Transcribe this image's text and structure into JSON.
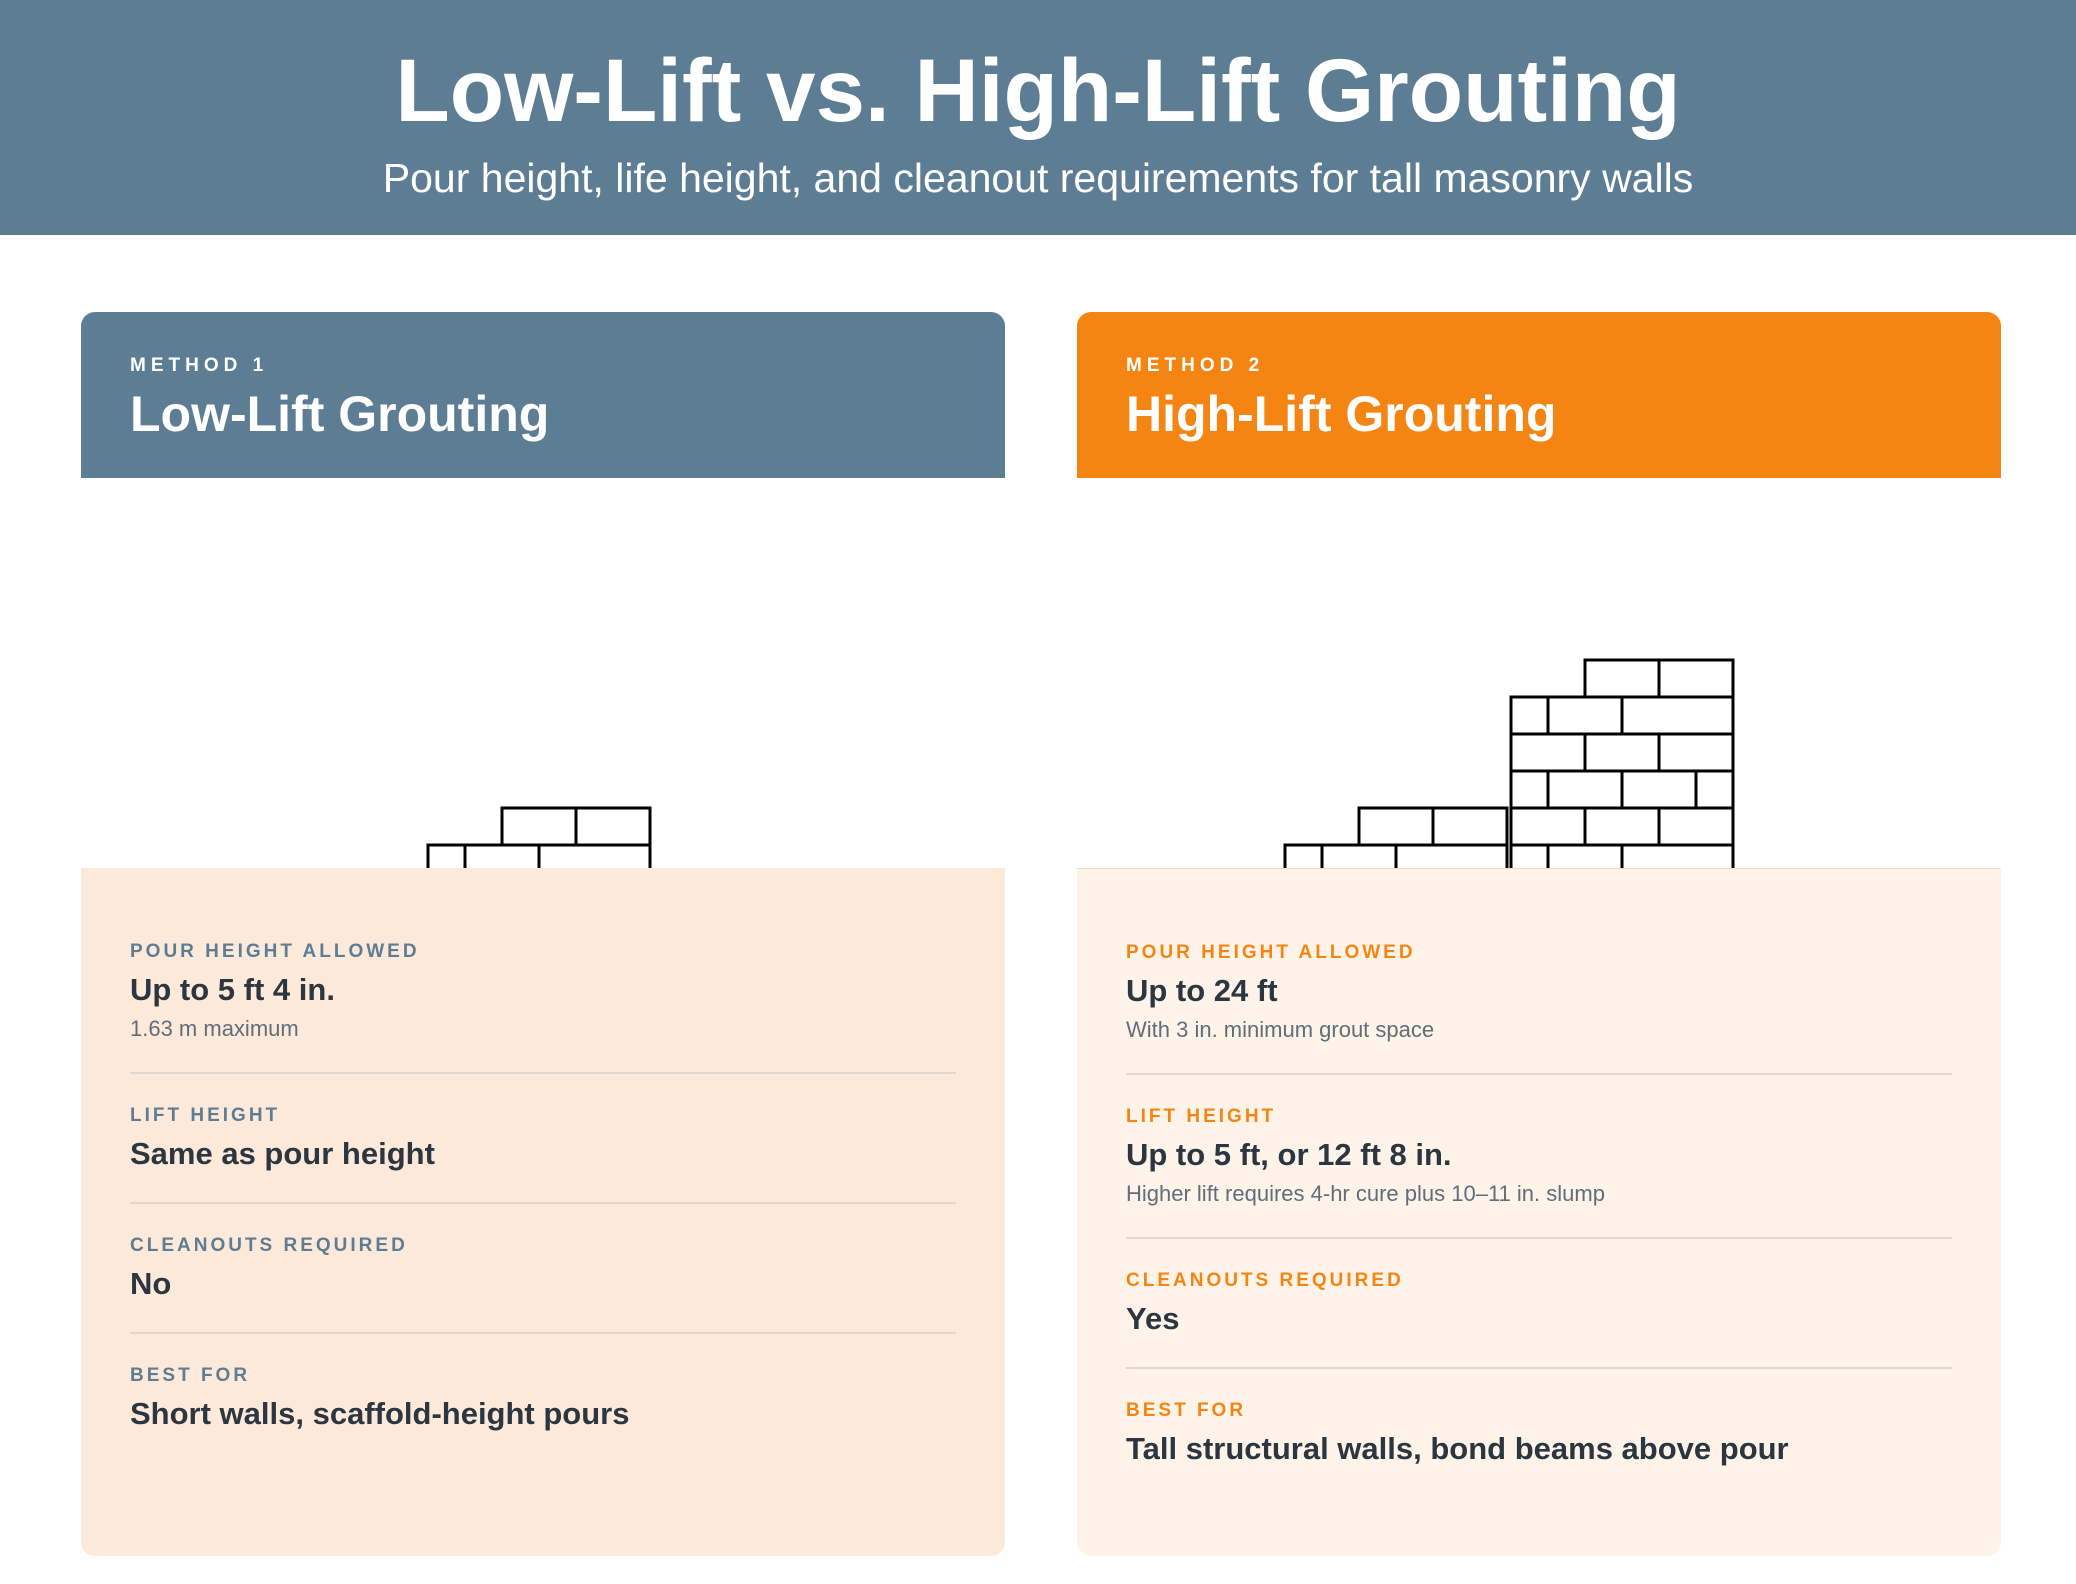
{
  "header": {
    "title": "Low-Lift vs. High-Lift Grouting",
    "subtitle": "Pour height, life height, and cleanout requirements for tall masonry walls"
  },
  "methods": [
    {
      "kicker": "METHOD 1",
      "name": "Low-Lift Grouting",
      "accent": "#5d7d94",
      "facts": [
        {
          "label": "POUR HEIGHT ALLOWED",
          "value": "Up to 5 ft 4 in.",
          "note": "1.63 m maximum"
        },
        {
          "label": "LIFT HEIGHT",
          "value": "Same as pour height",
          "note": ""
        },
        {
          "label": "CLEANOUTS REQUIRED",
          "value": "No",
          "note": ""
        },
        {
          "label": "BEST FOR",
          "value": "Short walls, scaffold-height pours",
          "note": ""
        }
      ]
    },
    {
      "kicker": "METHOD 2",
      "name": "High-Lift Grouting",
      "accent": "#f58512",
      "facts": [
        {
          "label": "POUR HEIGHT ALLOWED",
          "value": "Up to 24 ft",
          "note": "With 3 in. minimum grout space"
        },
        {
          "label": "LIFT HEIGHT",
          "value": "Up to 5 ft, or 12 ft 8 in.",
          "note": "Higher lift requires 4-hr cure plus 10–11 in. slump"
        },
        {
          "label": "CLEANOUTS REQUIRED",
          "value": "Yes",
          "note": ""
        },
        {
          "label": "BEST FOR",
          "value": "Tall structural walls, bond beams above pour",
          "note": ""
        }
      ]
    }
  ]
}
